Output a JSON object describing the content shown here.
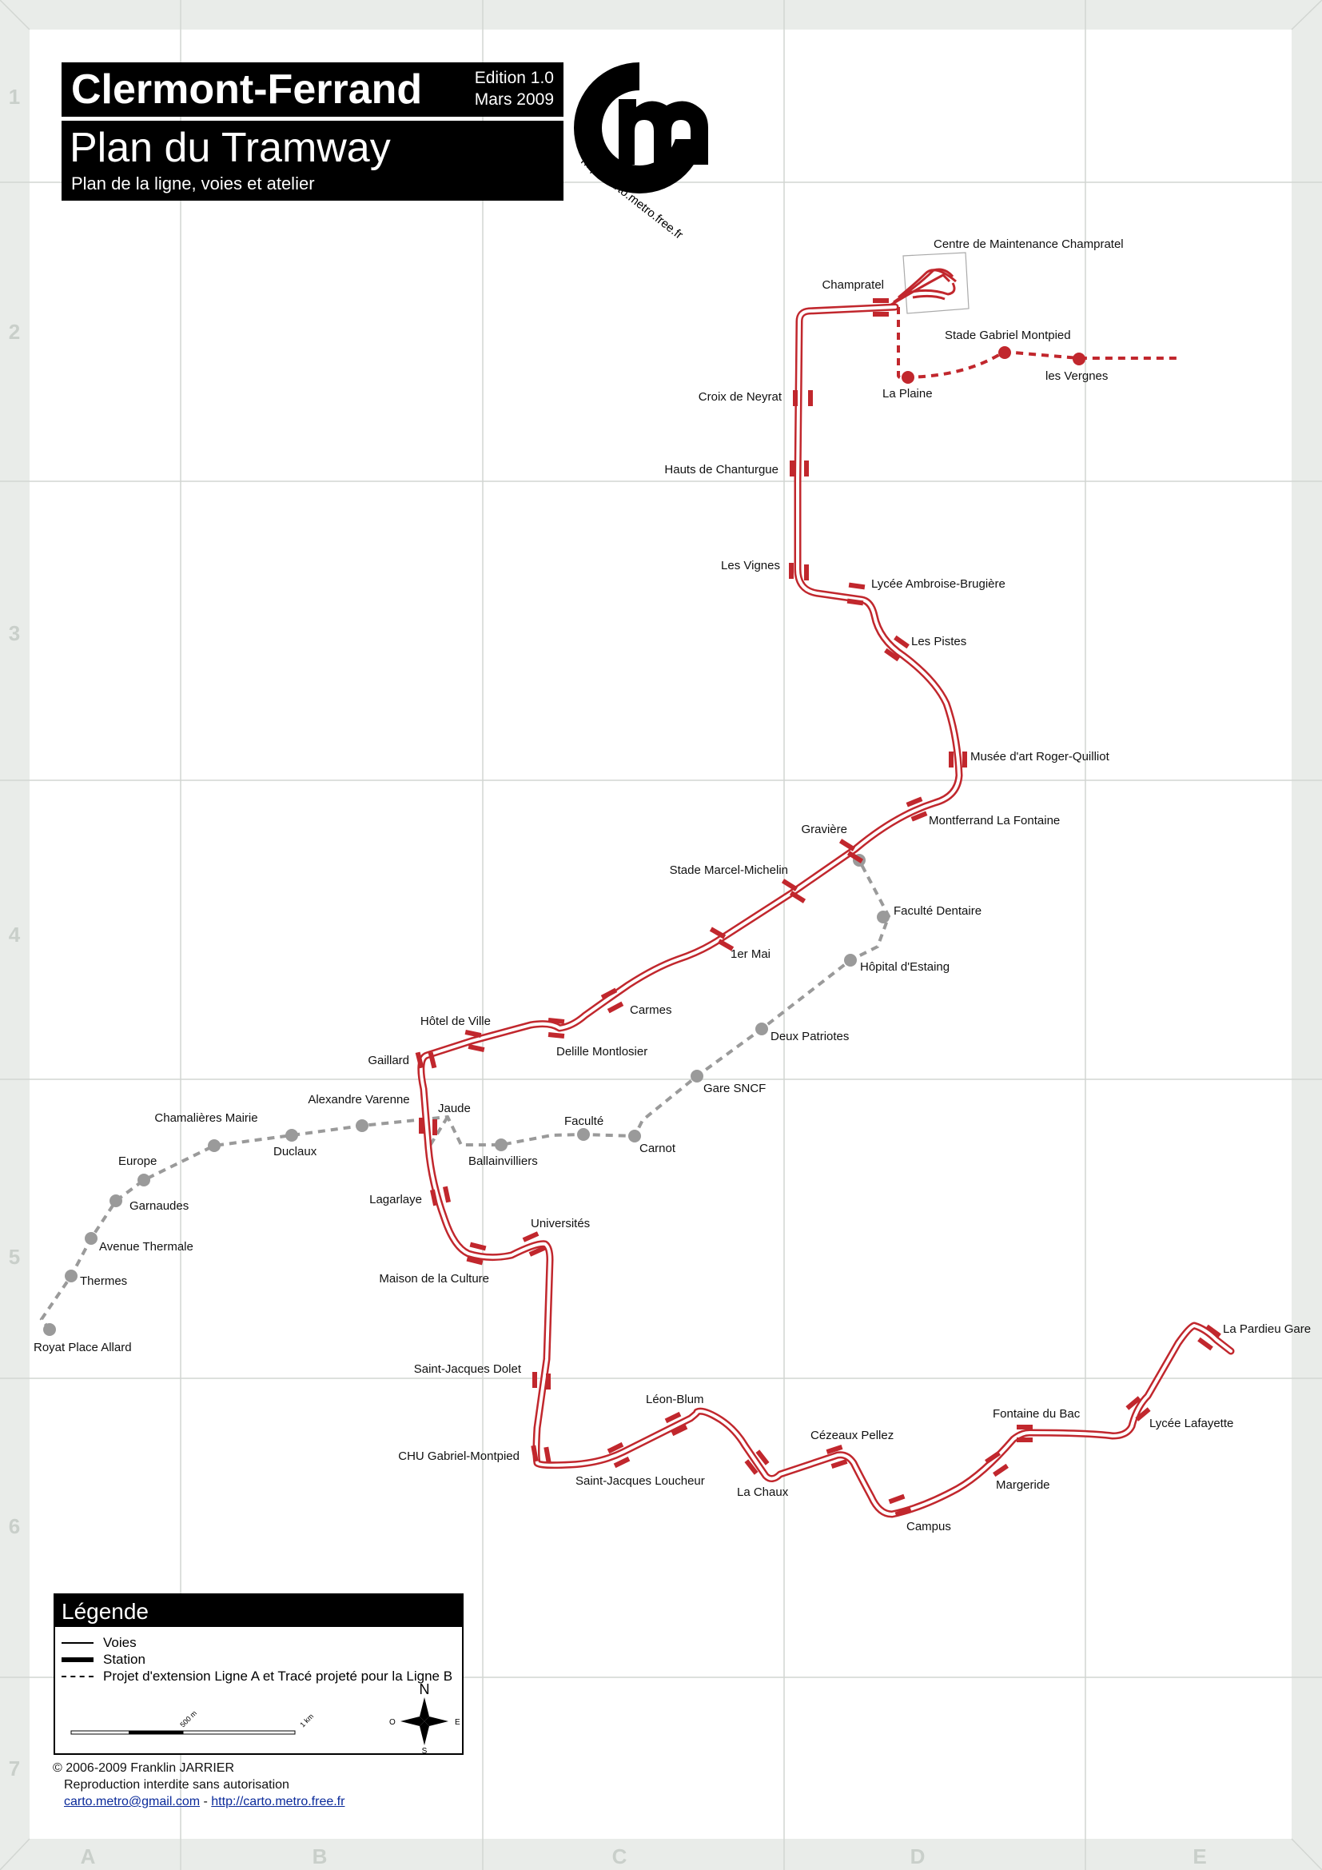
{
  "header": {
    "city": "Clermont-Ferrand",
    "edition": "Edition 1.0",
    "date": "Mars 2009",
    "plan_title": "Plan du Tramway",
    "subtitle": "Plan de la ligne, voies et atelier"
  },
  "logo": {
    "text": "http://carto.metro.free.fr",
    "icon": "cm-logo-icon"
  },
  "grid": {
    "columns": [
      "A",
      "B",
      "C",
      "D",
      "E"
    ],
    "rows": [
      "1",
      "2",
      "3",
      "4",
      "5",
      "6",
      "7"
    ]
  },
  "colors": {
    "line": "#c1272d",
    "extension": "#c1272d",
    "projected": "#9a9a9a",
    "grid": "#d2d6d2",
    "frame": "#e9ece9"
  },
  "depot": {
    "label": "Centre de Maintenance Champratel"
  },
  "stations": [
    {
      "id": "champratel",
      "name": "Champratel"
    },
    {
      "id": "croix-de-neyrat",
      "name": "Croix de Neyrat"
    },
    {
      "id": "hauts-de-chanturgue",
      "name": "Hauts de Chanturgue"
    },
    {
      "id": "les-vignes",
      "name": "Les Vignes"
    },
    {
      "id": "lycee-ambroise-brugiere",
      "name": "Lycée Ambroise-Brugière"
    },
    {
      "id": "les-pistes",
      "name": "Les Pistes"
    },
    {
      "id": "musee-roger-quilliot",
      "name": "Musée d'art Roger-Quilliot"
    },
    {
      "id": "montferrand-la-fontaine",
      "name": "Montferrand La Fontaine"
    },
    {
      "id": "graviere",
      "name": "Gravière"
    },
    {
      "id": "stade-marcel-michelin",
      "name": "Stade Marcel-Michelin"
    },
    {
      "id": "1er-mai",
      "name": "1er Mai"
    },
    {
      "id": "carmes",
      "name": "Carmes"
    },
    {
      "id": "delille-montlosier",
      "name": "Delille Montlosier"
    },
    {
      "id": "hotel-de-ville",
      "name": "Hôtel de Ville"
    },
    {
      "id": "gaillard",
      "name": "Gaillard"
    },
    {
      "id": "jaude",
      "name": "Jaude"
    },
    {
      "id": "lagarlaye",
      "name": "Lagarlaye"
    },
    {
      "id": "maison-de-la-culture",
      "name": "Maison de la Culture"
    },
    {
      "id": "universites",
      "name": "Universités"
    },
    {
      "id": "saint-jacques-dolet",
      "name": "Saint-Jacques Dolet"
    },
    {
      "id": "chu-gabriel-montpied",
      "name": "CHU Gabriel-Montpied"
    },
    {
      "id": "saint-jacques-loucheur",
      "name": "Saint-Jacques Loucheur"
    },
    {
      "id": "leon-blum",
      "name": "Léon-Blum"
    },
    {
      "id": "la-chaux",
      "name": "La Chaux"
    },
    {
      "id": "cezeaux-pellez",
      "name": "Cézeaux Pellez"
    },
    {
      "id": "campus",
      "name": "Campus"
    },
    {
      "id": "margeride",
      "name": "Margeride"
    },
    {
      "id": "fontaine-du-bac",
      "name": "Fontaine du Bac"
    },
    {
      "id": "lycee-lafayette",
      "name": "Lycée Lafayette"
    },
    {
      "id": "la-pardieu-gare",
      "name": "La Pardieu Gare"
    }
  ],
  "extension_stations": [
    {
      "id": "la-plaine",
      "name": "La Plaine"
    },
    {
      "id": "stade-gabriel-montpied",
      "name": "Stade Gabriel Montpied"
    },
    {
      "id": "les-vergnes",
      "name": "les Vergnes"
    }
  ],
  "projected_stations": [
    {
      "id": "royat-place-allard",
      "name": "Royat Place Allard"
    },
    {
      "id": "thermes",
      "name": "Thermes"
    },
    {
      "id": "avenue-thermale",
      "name": "Avenue Thermale"
    },
    {
      "id": "garnaudes",
      "name": "Garnaudes"
    },
    {
      "id": "europe",
      "name": "Europe"
    },
    {
      "id": "chamalieres-mairie",
      "name": "Chamalières Mairie"
    },
    {
      "id": "duclaux",
      "name": "Duclaux"
    },
    {
      "id": "alexandre-varenne",
      "name": "Alexandre Varenne"
    },
    {
      "id": "ballainvilliers",
      "name": "Ballainvilliers"
    },
    {
      "id": "faculte",
      "name": "Faculté"
    },
    {
      "id": "carnot",
      "name": "Carnot"
    },
    {
      "id": "gare-sncf",
      "name": "Gare SNCF"
    },
    {
      "id": "deux-patriotes",
      "name": "Deux Patriotes"
    },
    {
      "id": "hopital-destaing",
      "name": "Hôpital d'Estaing"
    },
    {
      "id": "faculte-dentaire",
      "name": "Faculté Dentaire"
    }
  ],
  "legend": {
    "title": "Légende",
    "items": [
      "Voies",
      "Station",
      "Projet d'extension Ligne A et Tracé projeté pour la Ligne B"
    ],
    "scale": [
      "500 m",
      "1 km"
    ],
    "compass": {
      "n": "N",
      "s": "S",
      "e": "E",
      "w": "O"
    }
  },
  "credits": {
    "copyright": "© 2006-2009   Franklin JARRIER",
    "rights": "Reproduction interdite sans autorisation",
    "email": "carto.metro@gmail.com",
    "separator": " - ",
    "website": "http://carto.metro.free.fr"
  }
}
